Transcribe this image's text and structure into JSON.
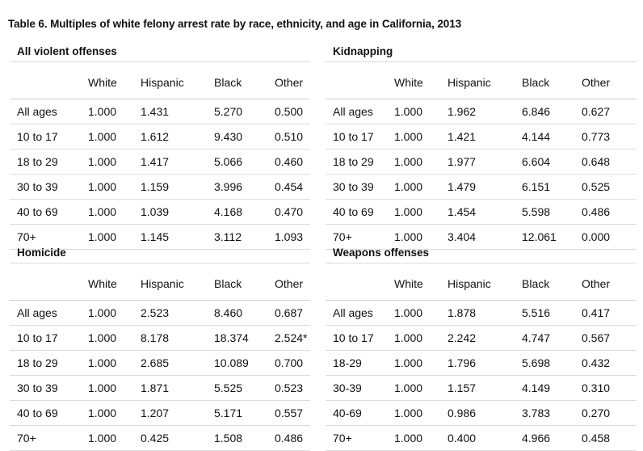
{
  "title": "Table 6. Multiples of white felony arrest rate by race, ethnicity, and age in California, 2013",
  "columns": [
    "White",
    "Hispanic",
    "Black",
    "Other"
  ],
  "sections": [
    {
      "name": "All violent offenses",
      "rows": [
        {
          "age": "All ages",
          "values": [
            "1.000",
            "1.431",
            "5.270",
            "0.500"
          ]
        },
        {
          "age": "10 to 17",
          "values": [
            "1.000",
            "1.612",
            "9.430",
            "0.510"
          ]
        },
        {
          "age": "18 to 29",
          "values": [
            "1.000",
            "1.417",
            "5.066",
            "0.460"
          ]
        },
        {
          "age": "30 to 39",
          "values": [
            "1.000",
            "1.159",
            "3.996",
            "0.454"
          ]
        },
        {
          "age": "40 to 69",
          "values": [
            "1.000",
            "1.039",
            "4.168",
            "0.470"
          ]
        },
        {
          "age": "70+",
          "values": [
            "1.000",
            "1.145",
            "3.112",
            "1.093"
          ]
        }
      ]
    },
    {
      "name": "Kidnapping",
      "rows": [
        {
          "age": "All ages",
          "values": [
            "1.000",
            "1.962",
            "6.846",
            "0.627"
          ]
        },
        {
          "age": "10 to 17",
          "values": [
            "1.000",
            "1.421",
            "4.144",
            "0.773"
          ]
        },
        {
          "age": "18 to 29",
          "values": [
            "1.000",
            "1.977",
            "6.604",
            "0.648"
          ]
        },
        {
          "age": "30 to 39",
          "values": [
            "1.000",
            "1.479",
            "6.151",
            "0.525"
          ]
        },
        {
          "age": "40 to 69",
          "values": [
            "1.000",
            "1.454",
            "5.598",
            "0.486"
          ]
        },
        {
          "age": "70+",
          "values": [
            "1.000",
            "3.404",
            "12.061",
            "0.000"
          ]
        }
      ]
    },
    {
      "name": "Homicide",
      "rows": [
        {
          "age": "All ages",
          "values": [
            "1.000",
            "2.523",
            "8.460",
            "0.687"
          ]
        },
        {
          "age": "10 to 17",
          "values": [
            "1.000",
            "8.178",
            "18.374",
            "2.524*"
          ]
        },
        {
          "age": "18 to 29",
          "values": [
            "1.000",
            "2.685",
            "10.089",
            "0.700"
          ]
        },
        {
          "age": "30 to 39",
          "values": [
            "1.000",
            "1.871",
            "5.525",
            "0.523"
          ]
        },
        {
          "age": "40 to 69",
          "values": [
            "1.000",
            "1.207",
            "5.171",
            "0.557"
          ]
        },
        {
          "age": "70+",
          "values": [
            "1.000",
            "0.425",
            "1.508",
            "0.486"
          ]
        }
      ]
    },
    {
      "name": "Weapons offenses",
      "rows": [
        {
          "age": "All ages",
          "values": [
            "1.000",
            "1.878",
            "5.516",
            "0.417"
          ]
        },
        {
          "age": "10 to 17",
          "values": [
            "1.000",
            "2.242",
            "4.747",
            "0.567"
          ]
        },
        {
          "age": "18-29",
          "values": [
            "1.000",
            "1.796",
            "5.698",
            "0.432"
          ]
        },
        {
          "age": "30-39",
          "values": [
            "1.000",
            "1.157",
            "4.149",
            "0.310"
          ]
        },
        {
          "age": "40-69",
          "values": [
            "1.000",
            "0.986",
            "3.783",
            "0.270"
          ]
        },
        {
          "age": "70+",
          "values": [
            "1.000",
            "0.400",
            "4.966",
            "0.458"
          ]
        }
      ]
    }
  ]
}
